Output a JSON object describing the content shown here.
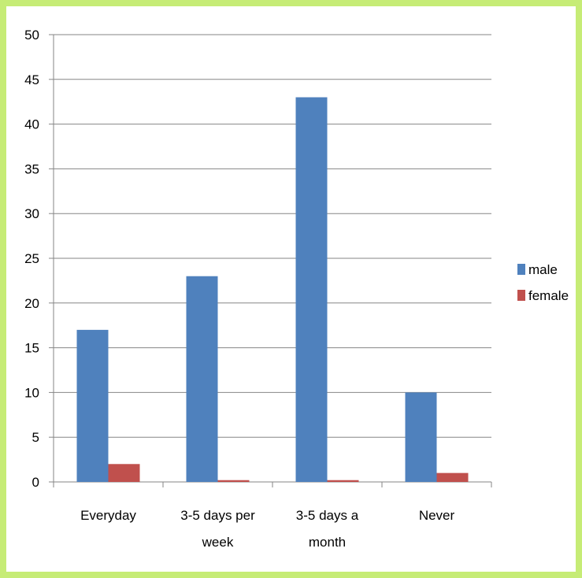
{
  "chart_data": {
    "type": "bar",
    "categories": [
      [
        "Everyday"
      ],
      [
        "3-5 days per",
        "week"
      ],
      [
        "3-5 days a",
        "month"
      ],
      [
        "Never"
      ]
    ],
    "series": [
      {
        "name": "male",
        "values": [
          17,
          23,
          43,
          10
        ],
        "color": "#4f81bd"
      },
      {
        "name": "female",
        "values": [
          2,
          0.2,
          0.2,
          1
        ],
        "color": "#c0504d"
      }
    ],
    "ylim": [
      0,
      50
    ],
    "yticks": [
      "0",
      "5",
      "10",
      "15",
      "20",
      "25",
      "30",
      "35",
      "40",
      "45",
      "50"
    ],
    "title": "",
    "xlabel": "",
    "ylabel": "",
    "grid": "horizontal",
    "legend_position": "right"
  }
}
